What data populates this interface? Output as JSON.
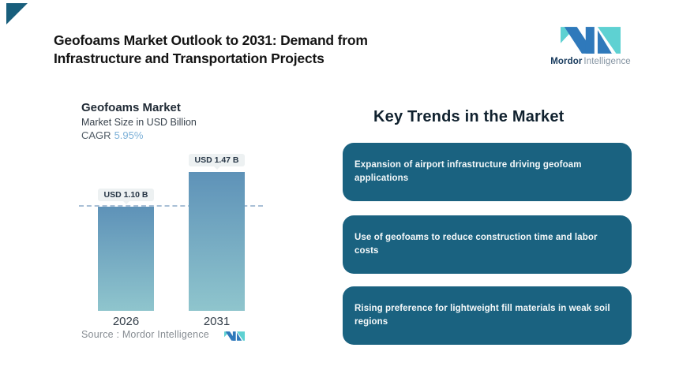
{
  "decor": {
    "corner_triangle_color": "#185e7c"
  },
  "header": {
    "title": "Geofoams Market Outlook to 2031: Demand from\nInfrastructure and Transportation Projects"
  },
  "logo": {
    "brand_bold": "Mordor",
    "brand_light": "Intelligence",
    "teal": "#5ed1d2",
    "blue": "#2f79bb",
    "brand_bold_color": "#16395c",
    "brand_light_color": "#8594a2"
  },
  "chart_data": {
    "type": "bar",
    "title": "Geofoams Market",
    "subtitle": "Market Size in USD Billion",
    "cagr_label": "CAGR",
    "cagr_value": "5.95%",
    "categories": [
      "2026",
      "2031"
    ],
    "values": [
      1.1,
      1.47
    ],
    "value_labels": [
      "USD 1.10 B",
      "USD 1.47 B"
    ],
    "ylabel": "Market Size in USD Billion",
    "ylim": [
      0,
      1.6
    ],
    "grid": false,
    "reference_line_value": 1.1,
    "reference_line_color": "#a9c0d6",
    "bar_gradient_top": "#5e92b8",
    "bar_gradient_bottom": "#8fc5cd",
    "source": "Source :  Mordor Intelligence"
  },
  "trends": {
    "heading": "Key Trends in the Market",
    "box_color": "#1a6280",
    "items": [
      {
        "text": "Expansion of airport infrastructure driving geofoam\napplications"
      },
      {
        "text": "Use of geofoams to reduce construction time and labor costs"
      },
      {
        "text": "Rising preference for lightweight fill materials in weak soil\nregions"
      }
    ]
  }
}
